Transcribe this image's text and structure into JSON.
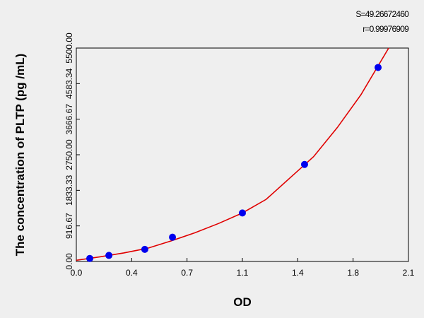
{
  "chart_data": {
    "type": "scatter",
    "annotations": [
      "S=49.26672460",
      "r=0.99976909"
    ],
    "x_label": "OD",
    "y_label": "The concentration of PLTP (pg /mL)",
    "xlim": [
      0,
      2.1
    ],
    "xticks": [
      {
        "value": 0,
        "label": "0.0"
      },
      {
        "value": 0.35,
        "label": "0.4"
      },
      0.7,
      {
        "value": 1.05,
        "label": "1.1"
      },
      1.4,
      {
        "value": 1.75,
        "label": "1.8"
      },
      2.1
    ],
    "ylim": [
      0,
      5500
    ],
    "yticks": [
      {
        "value": 0,
        "label": "0.00"
      },
      916.67,
      1833.33,
      {
        "value": 2750,
        "label": "2750.00"
      },
      3666.67,
      4583.34,
      {
        "value": 5500,
        "label": "5500.00"
      }
    ],
    "points": {
      "color": "#0000ee",
      "x": [
        0.085,
        0.206,
        0.433,
        0.608,
        1.05,
        1.443,
        1.908
      ],
      "values": [
        78,
        156,
        312,
        625,
        1250,
        2500,
        5000
      ]
    },
    "fit": {
      "color": "#e00000",
      "x": [
        0,
        0.15,
        0.3,
        0.45,
        0.6,
        0.75,
        0.9,
        1.05,
        1.2,
        1.35,
        1.5,
        1.65,
        1.8,
        1.975
      ],
      "values": [
        30,
        120,
        220,
        340,
        530,
        740,
        980,
        1250,
        1600,
        2150,
        2700,
        3450,
        4300,
        5500
      ]
    }
  }
}
